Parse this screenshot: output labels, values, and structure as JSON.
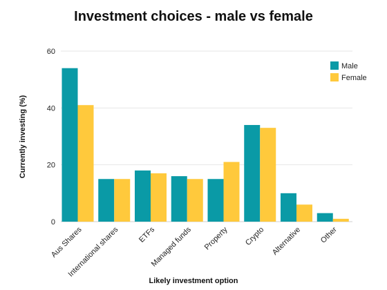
{
  "chart_data": {
    "type": "bar",
    "title": "Investment choices - male vs female",
    "xlabel": "Likely investment option",
    "ylabel": "Currently investing  (%)",
    "ylim": [
      0,
      60
    ],
    "yticks": [
      0,
      20,
      40,
      60
    ],
    "grid": true,
    "legend_position": "top-right",
    "categories": [
      "Aus Shares",
      "International shares",
      "ETFs",
      "Managed funds",
      "Property",
      "Crypto",
      "Alternative",
      "Other"
    ],
    "series": [
      {
        "name": "Male",
        "color": "#0a9aa6",
        "values": [
          54,
          15,
          18,
          16,
          15,
          34,
          10,
          3
        ]
      },
      {
        "name": "Female",
        "color": "#ffc93c",
        "values": [
          41,
          15,
          17,
          15,
          21,
          33,
          6,
          1
        ]
      }
    ]
  }
}
